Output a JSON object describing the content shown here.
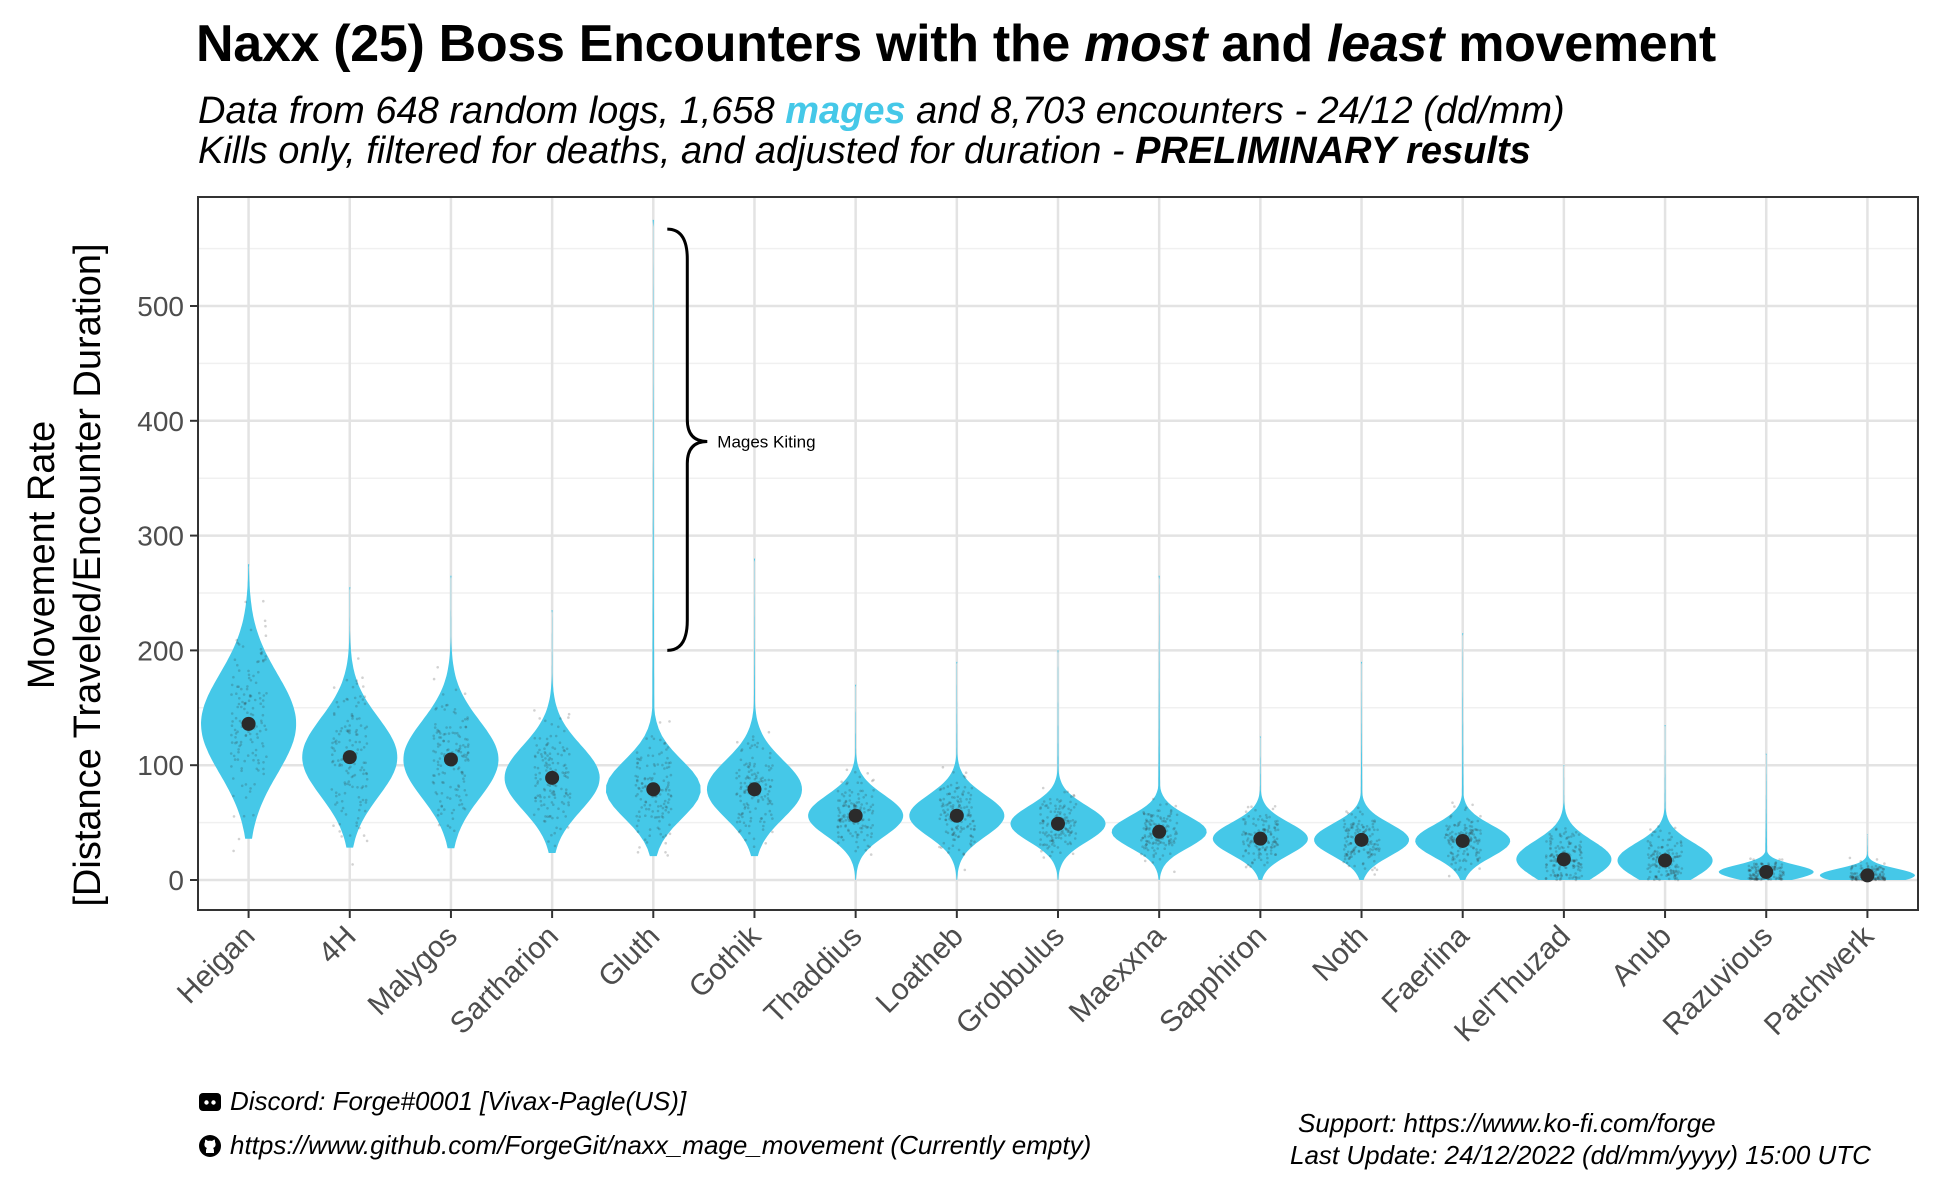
{
  "title": {
    "part1": "Naxx (25) Boss Encounters with the ",
    "em1": "most",
    "part2": " and ",
    "em2": "least",
    "part3": " movement"
  },
  "subtitle": {
    "line1_a": "Data from 648 random logs, 1,658 ",
    "line1_highlight": "mages",
    "line1_b": " and 8,703 encounters - 24/12 (dd/mm)",
    "line2_a": "Kills only, filtered for deaths, and adjusted for duration - ",
    "line2_bold": "PRELIMINARY results"
  },
  "footer": {
    "discord": "Discord: Forge#0001 [Vivax-Pagle(US)]",
    "github": "https://www.github.com/ForgeGit/naxx_mage_movement (Currently empty)",
    "support": "Support: https://www.ko-fi.com/forge",
    "last_update": "Last Update: 24/12/2022 (dd/mm/yyyy) 15:00 UTC"
  },
  "icons": {
    "discord": "discord-icon",
    "github": "github-icon"
  },
  "colors": {
    "violin": "#45c8e8",
    "median_dot": "#2b2b2b",
    "highlight": "#45c8e8"
  },
  "chart_data": {
    "type": "violin",
    "ylabel_line1": "Movement Rate",
    "ylabel_line2": "[Distance Traveled/Encounter Duration]",
    "xlabel": "",
    "ylim": [
      -28,
      590
    ],
    "yticks": [
      0,
      100,
      200,
      300,
      400,
      500
    ],
    "grid": true,
    "categories": [
      "Heigan",
      "4H",
      "Malygos",
      "Sartharion",
      "Gluth",
      "Gothik",
      "Thaddius",
      "Loatheb",
      "Grobbulus",
      "Maexxna",
      "Sapphiron",
      "Noth",
      "Faerlina",
      "Kel'Thuzad",
      "Anub",
      "Razuvious",
      "Patchwerk"
    ],
    "median": [
      136,
      107,
      105,
      89,
      79,
      79,
      56,
      56,
      49,
      42,
      36,
      35,
      34,
      18,
      17,
      7,
      4
    ],
    "max": [
      275,
      255,
      265,
      235,
      575,
      280,
      170,
      190,
      200,
      265,
      125,
      190,
      215,
      100,
      135,
      110,
      40
    ],
    "annotation": {
      "text": "Mages Kiting",
      "category": "Gluth",
      "y_range": [
        200,
        567
      ],
      "label_y": 382
    }
  }
}
